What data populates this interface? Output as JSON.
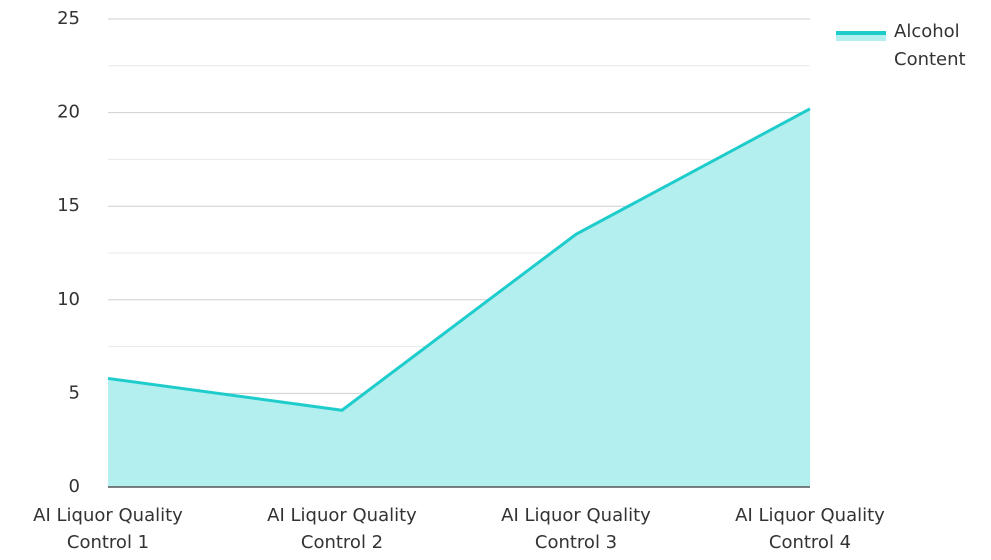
{
  "chart_data": {
    "type": "area",
    "categories": [
      "AI Liquor Quality Control 1",
      "AI Liquor Quality Control 2",
      "AI Liquor Quality Control 3",
      "AI Liquor Quality Control 4"
    ],
    "series": [
      {
        "name": "Alcohol Content",
        "color": "#1fcccc",
        "fill": "#b2efee",
        "values": [
          5.8,
          4.1,
          13.5,
          20.2
        ]
      }
    ],
    "ylim": [
      0,
      25
    ],
    "yticks": [
      0,
      5,
      10,
      15,
      20,
      25
    ],
    "grid": true,
    "minor_grid": true,
    "legend": "top-right"
  }
}
